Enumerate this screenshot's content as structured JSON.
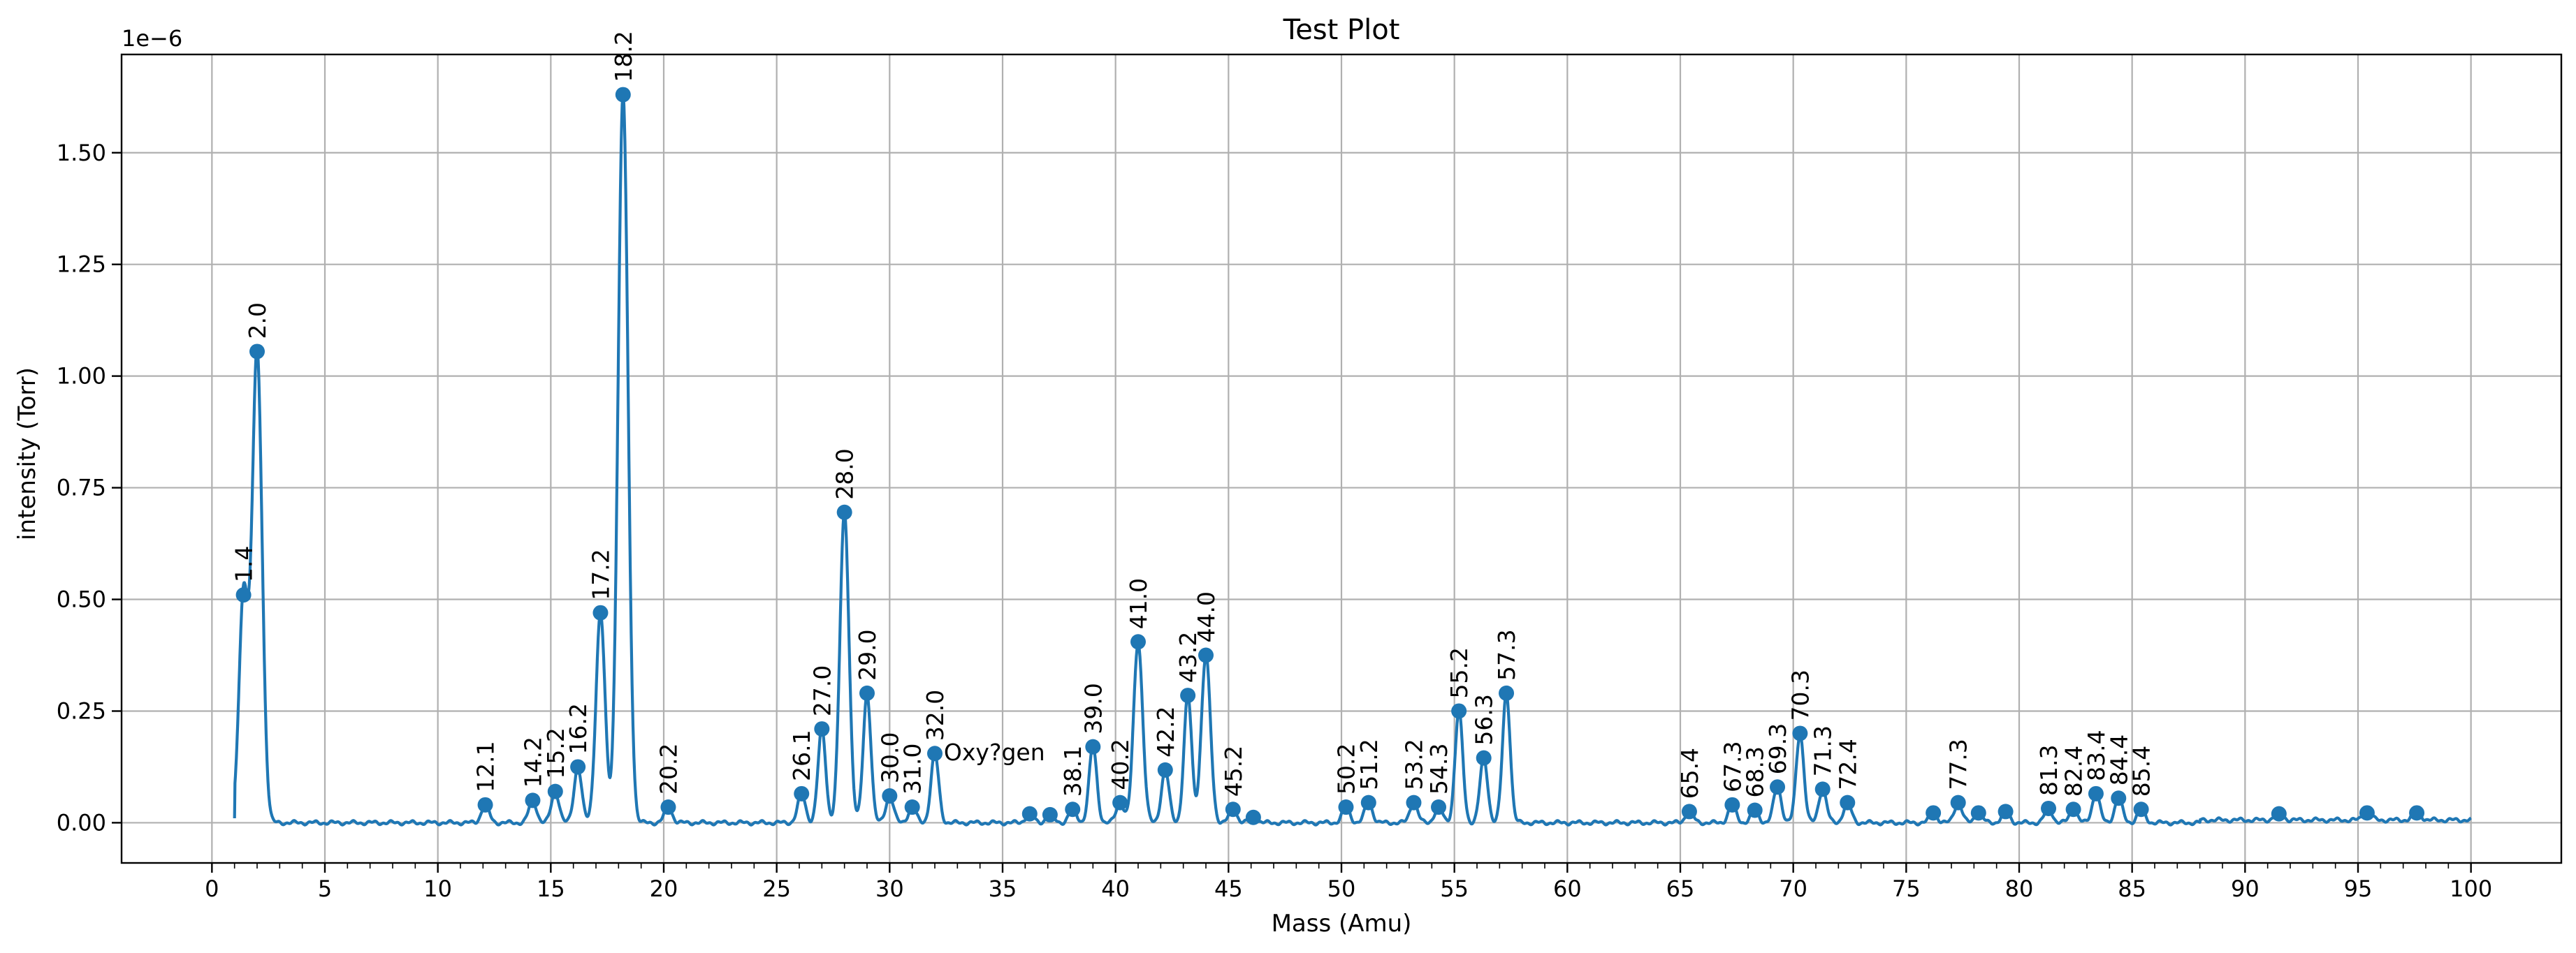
{
  "chart_data": {
    "type": "line",
    "title": "Test Plot",
    "xlabel": "Mass (Amu)",
    "ylabel": "intensity (Torr)",
    "y_scale_note": "1e−6",
    "xlim": [
      -4,
      104
    ],
    "ylim": [
      -0.09,
      1.72
    ],
    "grid": true,
    "x_major_ticks": [
      0,
      5,
      10,
      15,
      20,
      25,
      30,
      35,
      40,
      45,
      50,
      55,
      60,
      65,
      70,
      75,
      80,
      85,
      90,
      95,
      100
    ],
    "x_minor_step": 1,
    "y_ticks": [
      0.0,
      0.25,
      0.5,
      0.75,
      1.0,
      1.25,
      1.5
    ],
    "y_tick_labels": [
      "0.00",
      "0.25",
      "0.50",
      "0.75",
      "1.00",
      "1.25",
      "1.50"
    ],
    "line_color": "#1f77b4",
    "peaks": [
      {
        "x": 1.4,
        "y": 0.51,
        "label": "1.4"
      },
      {
        "x": 2.0,
        "y": 1.055,
        "label": "2.0"
      },
      {
        "x": 12.1,
        "y": 0.04,
        "label": "12.1"
      },
      {
        "x": 14.2,
        "y": 0.05,
        "label": "14.2"
      },
      {
        "x": 15.2,
        "y": 0.07,
        "label": "15.2"
      },
      {
        "x": 16.2,
        "y": 0.125,
        "label": "16.2"
      },
      {
        "x": 17.2,
        "y": 0.47,
        "label": "17.2"
      },
      {
        "x": 18.2,
        "y": 1.63,
        "label": "18.2"
      },
      {
        "x": 20.2,
        "y": 0.035,
        "label": "20.2"
      },
      {
        "x": 26.1,
        "y": 0.065,
        "label": "26.1"
      },
      {
        "x": 27.0,
        "y": 0.21,
        "label": "27.0"
      },
      {
        "x": 28.0,
        "y": 0.695,
        "label": "28.0"
      },
      {
        "x": 29.0,
        "y": 0.29,
        "label": "29.0"
      },
      {
        "x": 30.0,
        "y": 0.06,
        "label": "30.0"
      },
      {
        "x": 31.0,
        "y": 0.035,
        "label": "31.0"
      },
      {
        "x": 32.0,
        "y": 0.155,
        "label": "32.0"
      },
      {
        "x": 36.2,
        "y": 0.02,
        "label": ""
      },
      {
        "x": 37.1,
        "y": 0.018,
        "label": ""
      },
      {
        "x": 38.1,
        "y": 0.03,
        "label": "38.1"
      },
      {
        "x": 39.0,
        "y": 0.17,
        "label": "39.0"
      },
      {
        "x": 40.2,
        "y": 0.045,
        "label": "40.2"
      },
      {
        "x": 41.0,
        "y": 0.405,
        "label": "41.0"
      },
      {
        "x": 42.2,
        "y": 0.118,
        "label": "42.2"
      },
      {
        "x": 43.2,
        "y": 0.285,
        "label": "43.2"
      },
      {
        "x": 44.0,
        "y": 0.375,
        "label": "44.0"
      },
      {
        "x": 45.2,
        "y": 0.03,
        "label": "45.2"
      },
      {
        "x": 46.1,
        "y": 0.012,
        "label": ""
      },
      {
        "x": 50.2,
        "y": 0.035,
        "label": "50.2"
      },
      {
        "x": 51.2,
        "y": 0.045,
        "label": "51.2"
      },
      {
        "x": 53.2,
        "y": 0.045,
        "label": "53.2"
      },
      {
        "x": 54.3,
        "y": 0.035,
        "label": "54.3"
      },
      {
        "x": 55.2,
        "y": 0.25,
        "label": "55.2"
      },
      {
        "x": 56.3,
        "y": 0.145,
        "label": "56.3"
      },
      {
        "x": 57.3,
        "y": 0.29,
        "label": "57.3"
      },
      {
        "x": 65.4,
        "y": 0.025,
        "label": "65.4"
      },
      {
        "x": 67.3,
        "y": 0.04,
        "label": "67.3"
      },
      {
        "x": 68.3,
        "y": 0.028,
        "label": "68.3"
      },
      {
        "x": 69.3,
        "y": 0.08,
        "label": "69.3"
      },
      {
        "x": 70.3,
        "y": 0.2,
        "label": "70.3"
      },
      {
        "x": 71.3,
        "y": 0.075,
        "label": "71.3"
      },
      {
        "x": 72.4,
        "y": 0.045,
        "label": "72.4"
      },
      {
        "x": 76.2,
        "y": 0.022,
        "label": ""
      },
      {
        "x": 77.3,
        "y": 0.045,
        "label": "77.3"
      },
      {
        "x": 78.2,
        "y": 0.022,
        "label": ""
      },
      {
        "x": 79.4,
        "y": 0.025,
        "label": ""
      },
      {
        "x": 81.3,
        "y": 0.032,
        "label": "81.3"
      },
      {
        "x": 82.4,
        "y": 0.03,
        "label": "82.4"
      },
      {
        "x": 83.4,
        "y": 0.065,
        "label": "83.4"
      },
      {
        "x": 84.4,
        "y": 0.055,
        "label": "84.4"
      },
      {
        "x": 85.4,
        "y": 0.03,
        "label": "85.4"
      },
      {
        "x": 91.5,
        "y": 0.02,
        "label": ""
      },
      {
        "x": 95.4,
        "y": 0.022,
        "label": ""
      },
      {
        "x": 97.6,
        "y": 0.022,
        "label": ""
      }
    ],
    "annotations": [
      {
        "x": 32.4,
        "y": 0.14,
        "text": "Oxy?gen"
      }
    ]
  }
}
